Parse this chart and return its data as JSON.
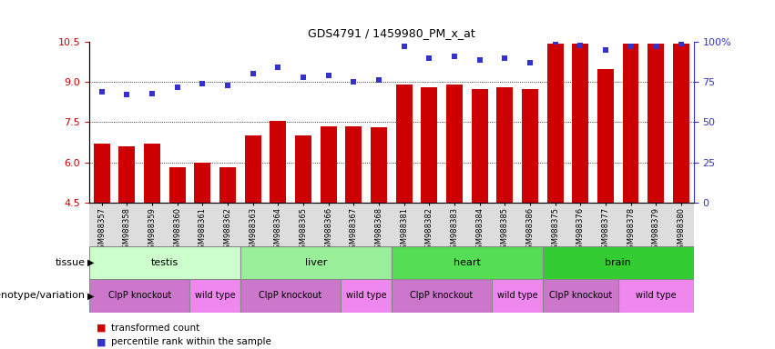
{
  "title": "GDS4791 / 1459980_PM_x_at",
  "samples": [
    "GSM988357",
    "GSM988358",
    "GSM988359",
    "GSM988360",
    "GSM988361",
    "GSM988362",
    "GSM988363",
    "GSM988364",
    "GSM988365",
    "GSM988366",
    "GSM988367",
    "GSM988368",
    "GSM988381",
    "GSM988382",
    "GSM988383",
    "GSM988384",
    "GSM988385",
    "GSM988386",
    "GSM988375",
    "GSM988376",
    "GSM988377",
    "GSM988378",
    "GSM988379",
    "GSM988380"
  ],
  "bar_values": [
    6.7,
    6.6,
    6.7,
    5.8,
    6.0,
    5.8,
    7.0,
    7.55,
    7.0,
    7.35,
    7.35,
    7.3,
    8.9,
    8.8,
    8.9,
    8.75,
    8.8,
    8.75,
    10.45,
    10.45,
    9.5,
    10.45,
    10.45,
    10.45
  ],
  "dot_values": [
    69,
    67,
    68,
    72,
    74,
    73,
    80,
    84,
    78,
    79,
    75,
    76,
    97,
    90,
    91,
    89,
    90,
    87,
    100,
    98,
    95,
    97,
    97,
    99
  ],
  "ylim": [
    4.5,
    10.5
  ],
  "y2lim": [
    0,
    100
  ],
  "yticks": [
    4.5,
    6.0,
    7.5,
    9.0,
    10.5
  ],
  "y2ticks": [
    0,
    25,
    50,
    75,
    100
  ],
  "bar_color": "#cc0000",
  "dot_color": "#3333cc",
  "grid_values": [
    6.0,
    7.5,
    9.0
  ],
  "tissue_row": [
    {
      "label": "testis",
      "start": 0,
      "end": 6,
      "color": "#ccffcc"
    },
    {
      "label": "liver",
      "start": 6,
      "end": 12,
      "color": "#99ee99"
    },
    {
      "label": "heart",
      "start": 12,
      "end": 18,
      "color": "#55dd55"
    },
    {
      "label": "brain",
      "start": 18,
      "end": 24,
      "color": "#33cc33"
    }
  ],
  "genotype_row": [
    {
      "label": "ClpP knockout",
      "start": 0,
      "end": 4,
      "color": "#cc77cc"
    },
    {
      "label": "wild type",
      "start": 4,
      "end": 6,
      "color": "#ee88ee"
    },
    {
      "label": "ClpP knockout",
      "start": 6,
      "end": 10,
      "color": "#cc77cc"
    },
    {
      "label": "wild type",
      "start": 10,
      "end": 12,
      "color": "#ee88ee"
    },
    {
      "label": "ClpP knockout",
      "start": 12,
      "end": 16,
      "color": "#cc77cc"
    },
    {
      "label": "wild type",
      "start": 16,
      "end": 18,
      "color": "#ee88ee"
    },
    {
      "label": "ClpP knockout",
      "start": 18,
      "end": 21,
      "color": "#cc77cc"
    },
    {
      "label": "wild type",
      "start": 21,
      "end": 24,
      "color": "#ee88ee"
    }
  ],
  "tissue_label": "tissue",
  "genotype_label": "genotype/variation",
  "legend_bar": "transformed count",
  "legend_dot": "percentile rank within the sample",
  "bg_color": "#f0f0f0"
}
